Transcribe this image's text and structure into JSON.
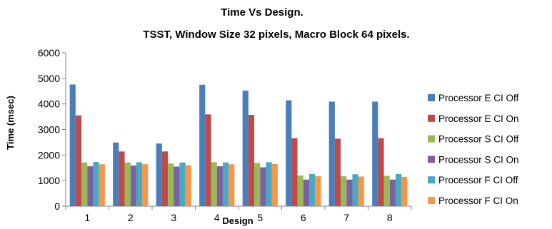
{
  "chart_data": {
    "type": "bar",
    "title": "Time Vs Design.",
    "subtitle": "TSST, Window Size 32 pixels, Macro Block 64 pixels.",
    "xlabel": "Design",
    "ylabel": "Time (msec)",
    "ylim": [
      0,
      6000
    ],
    "yticks": [
      "0",
      "1000",
      "2000",
      "3000",
      "4000",
      "5000",
      "6000"
    ],
    "grid": false,
    "legend_position": "right",
    "categories": [
      "1",
      "2",
      "3",
      "4",
      "5",
      "6",
      "7",
      "8"
    ],
    "series": [
      {
        "name": "Processor E CI Off",
        "color": "#4a7ebb",
        "values": [
          4760,
          2490,
          2450,
          4750,
          4520,
          4140,
          4090,
          4090
        ]
      },
      {
        "name": "Processor E CI On",
        "color": "#be4b48",
        "values": [
          3550,
          2140,
          2140,
          3590,
          3570,
          2660,
          2640,
          2660
        ]
      },
      {
        "name": "Processor S CI Off",
        "color": "#98b954",
        "values": [
          1710,
          1710,
          1670,
          1720,
          1690,
          1200,
          1170,
          1190
        ]
      },
      {
        "name": "Processor S CI On",
        "color": "#7d60a0",
        "values": [
          1560,
          1590,
          1550,
          1560,
          1520,
          1040,
          1040,
          1040
        ]
      },
      {
        "name": "Processor F CI Off",
        "color": "#46aac5",
        "values": [
          1730,
          1720,
          1710,
          1710,
          1720,
          1260,
          1250,
          1260
        ]
      },
      {
        "name": "Processor F CI On",
        "color": "#f79646",
        "values": [
          1640,
          1640,
          1600,
          1640,
          1650,
          1170,
          1160,
          1150
        ]
      }
    ]
  }
}
